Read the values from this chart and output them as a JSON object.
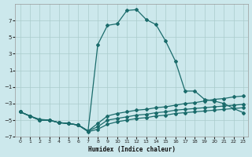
{
  "xlabel": "Humidex (Indice chaleur)",
  "bg_color": "#cce8ec",
  "grid_color": "#aacccc",
  "line_color": "#1a6b6b",
  "xlim": [
    -0.5,
    23.5
  ],
  "ylim": [
    -7,
    9
  ],
  "yticks": [
    -7,
    -5,
    -3,
    -1,
    1,
    3,
    5,
    7
  ],
  "xticks": [
    0,
    1,
    2,
    3,
    4,
    5,
    6,
    7,
    8,
    9,
    10,
    11,
    12,
    13,
    14,
    15,
    16,
    17,
    18,
    19,
    20,
    21,
    22,
    23
  ],
  "x": [
    0,
    1,
    2,
    3,
    4,
    5,
    6,
    7,
    8,
    9,
    10,
    11,
    12,
    13,
    14,
    15,
    16,
    17,
    18,
    19,
    20,
    21,
    22,
    23
  ],
  "line_main_y": [
    -4.0,
    -4.5,
    -5.0,
    -5.0,
    -5.3,
    -5.4,
    -5.6,
    -6.3,
    4.1,
    6.4,
    6.6,
    8.2,
    8.3,
    7.1,
    6.5,
    4.5,
    2.1,
    -1.5,
    -1.5,
    -2.5,
    -2.7,
    -3.0,
    -3.6,
    -4.1
  ],
  "line_flat1_y": [
    -4.0,
    -4.5,
    -5.0,
    -5.0,
    -5.3,
    -5.4,
    -5.6,
    -6.3,
    -5.8,
    -5.0,
    -4.8,
    -4.6,
    -4.4,
    -4.3,
    -4.1,
    -4.0,
    -3.8,
    -3.7,
    -3.6,
    -3.5,
    -3.4,
    -3.3,
    -3.2,
    -3.1
  ],
  "line_flat2_y": [
    -4.0,
    -4.5,
    -4.9,
    -5.0,
    -5.3,
    -5.4,
    -5.6,
    -6.4,
    -6.1,
    -5.5,
    -5.2,
    -5.0,
    -4.8,
    -4.7,
    -4.5,
    -4.4,
    -4.2,
    -4.1,
    -4.0,
    -3.9,
    -3.8,
    -3.7,
    -3.6,
    -3.5
  ],
  "line_flat3_y": [
    -4.0,
    -4.5,
    -5.0,
    -5.0,
    -5.3,
    -5.4,
    -5.6,
    -6.3,
    -5.4,
    -4.5,
    -4.2,
    -4.0,
    -3.8,
    -3.7,
    -3.5,
    -3.4,
    -3.2,
    -3.0,
    -2.9,
    -2.7,
    -2.5,
    -2.4,
    -2.2,
    -2.1
  ]
}
